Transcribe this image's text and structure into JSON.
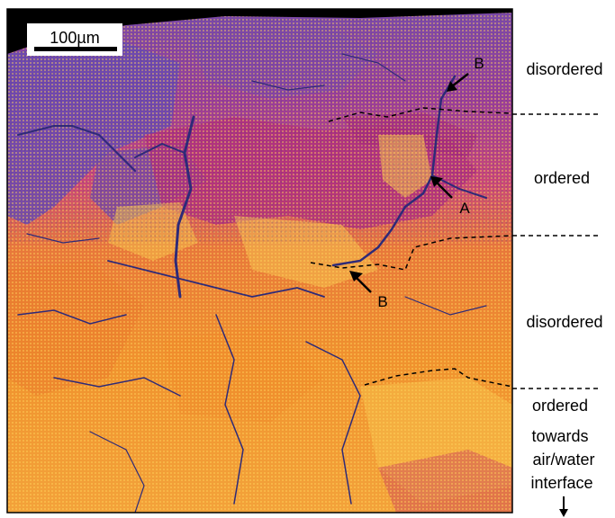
{
  "scale_bar": {
    "label": "100µm"
  },
  "region_labels": {
    "disordered_top": "disordered",
    "ordered_top": "ordered",
    "disordered_middle": "disordered",
    "ordered_bottom": "ordered",
    "towards_line1": "towards",
    "towards_line2": "air/water",
    "towards_line3": "interface"
  },
  "arrow_labels": {
    "b_top": "B",
    "a": "A",
    "b_middle": "B"
  },
  "colors": {
    "border": "#000000",
    "purple": "#6b4aa8",
    "magenta": "#b0307c",
    "orange": "#f08a2c",
    "yellow": "#f6c44a",
    "crack": "#2e2a78",
    "background": "#ffffff"
  }
}
